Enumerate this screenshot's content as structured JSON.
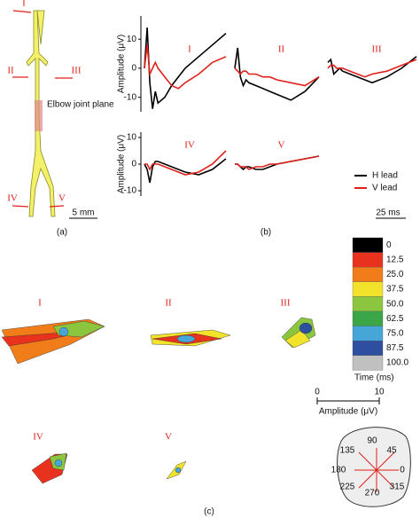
{
  "panel_labels": [
    "(a)",
    "(b)",
    "(c)"
  ],
  "panel_a": {
    "sites": [
      "I",
      "II",
      "III",
      "IV",
      "V"
    ],
    "plane_label": "Elbow joint plane",
    "scale_bar": "5 mm"
  },
  "legend": [
    {
      "name": "H lead",
      "color": "#000000"
    },
    {
      "name": "V lead",
      "color": "#e0201b"
    }
  ],
  "time_scale_bar": "25 ms",
  "chart_data": [
    {
      "type": "line",
      "title": "I",
      "ylabel": "Amplitude (μV)",
      "x": [
        0,
        2,
        4,
        6,
        8,
        10,
        15,
        20,
        25,
        30,
        40,
        50,
        60
      ],
      "xlim": [
        0,
        60
      ],
      "ylim": [
        -15,
        18
      ],
      "yticks": [
        -10,
        0,
        10
      ],
      "series": [
        {
          "color": "#000000",
          "values": [
            0,
            14,
            -5,
            -14,
            -8,
            -12,
            -10,
            -6,
            -3,
            0,
            4,
            8,
            12
          ]
        },
        {
          "color": "#e0201b",
          "values": [
            0,
            8,
            -2,
            0,
            2,
            0,
            -3,
            -6,
            -7,
            -5,
            -2,
            2,
            4
          ]
        }
      ]
    },
    {
      "type": "line",
      "title": "II",
      "x": [
        0,
        2,
        4,
        6,
        8,
        10,
        15,
        20,
        25,
        30,
        40,
        50,
        60
      ],
      "xlim": [
        0,
        60
      ],
      "ylim": [
        -15,
        18
      ],
      "series": [
        {
          "color": "#000000",
          "values": [
            0,
            7,
            -3,
            -6,
            -4,
            -5,
            -6,
            -7,
            -8,
            -9,
            -11,
            -8,
            -3
          ]
        },
        {
          "color": "#e0201b",
          "values": [
            0,
            -1,
            -2,
            -1,
            -1,
            -2,
            -2,
            -3,
            -3,
            -4,
            -5,
            -6,
            -3
          ]
        }
      ]
    },
    {
      "type": "line",
      "title": "III",
      "x": [
        0,
        2,
        4,
        6,
        8,
        10,
        15,
        20,
        25,
        30,
        40,
        50,
        60
      ],
      "xlim": [
        0,
        60
      ],
      "ylim": [
        -15,
        18
      ],
      "series": [
        {
          "color": "#000000",
          "values": [
            2,
            3,
            -2,
            -1,
            0,
            -1,
            -2,
            -3,
            -4,
            -5,
            -3,
            0,
            4
          ]
        },
        {
          "color": "#e0201b",
          "values": [
            0,
            1,
            1,
            0,
            0,
            0,
            -1,
            -2,
            -3,
            -2,
            -1,
            1,
            3
          ]
        }
      ]
    },
    {
      "type": "line",
      "title": "IV",
      "ylabel": "Amplitude (μV)",
      "x": [
        0,
        2,
        4,
        6,
        8,
        10,
        15,
        20,
        25,
        30,
        40,
        50,
        60
      ],
      "xlim": [
        0,
        60
      ],
      "ylim": [
        -12,
        12
      ],
      "yticks": [
        -10,
        0,
        10
      ],
      "series": [
        {
          "color": "#000000",
          "values": [
            0,
            -2,
            -7,
            -1,
            1,
            1,
            0,
            -1,
            -2,
            -3,
            -4,
            -2,
            2
          ]
        },
        {
          "color": "#e0201b",
          "values": [
            0,
            0,
            -2,
            0,
            0,
            0,
            -1,
            -2,
            -3,
            -4,
            -3,
            0,
            5
          ]
        }
      ]
    },
    {
      "type": "line",
      "title": "V",
      "x": [
        0,
        2,
        4,
        6,
        8,
        10,
        15,
        20,
        25,
        30,
        40,
        50,
        60
      ],
      "xlim": [
        0,
        60
      ],
      "ylim": [
        -12,
        12
      ],
      "series": [
        {
          "color": "#000000",
          "values": [
            0,
            0,
            -1,
            -2,
            -1,
            -1,
            -2,
            -2,
            -1,
            0,
            1,
            2,
            3
          ]
        },
        {
          "color": "#e0201b",
          "values": [
            0,
            0,
            -1,
            -1,
            -1,
            -2,
            -1,
            -1,
            0,
            0,
            1,
            2,
            3
          ]
        }
      ]
    }
  ],
  "maps": [
    "I",
    "II",
    "III",
    "IV",
    "V"
  ],
  "color_scale": {
    "title": "Time (ms)",
    "levels": [
      0,
      12.5,
      {
        "value": 25,
        "label": "25.0"
      },
      37.5,
      {
        "value": 50,
        "label": "50.0"
      },
      62.5,
      {
        "value": 75,
        "label": "75.0"
      },
      87.5,
      {
        "value": 100,
        "label": "100.0"
      }
    ],
    "colors": [
      "#000000",
      "#e8321e",
      "#f07d1a",
      "#f2e22a",
      "#8cc63e",
      "#3aa648",
      "#47a6d8",
      "#2e4ea0",
      "#c0c0c0"
    ]
  },
  "amplitude_scale": {
    "label": "Amplitude (μV)",
    "lim": [
      0,
      10
    ],
    "ticks": [
      0,
      10
    ]
  },
  "directions": [
    135,
    90,
    45,
    180,
    0,
    225,
    270,
    315
  ]
}
